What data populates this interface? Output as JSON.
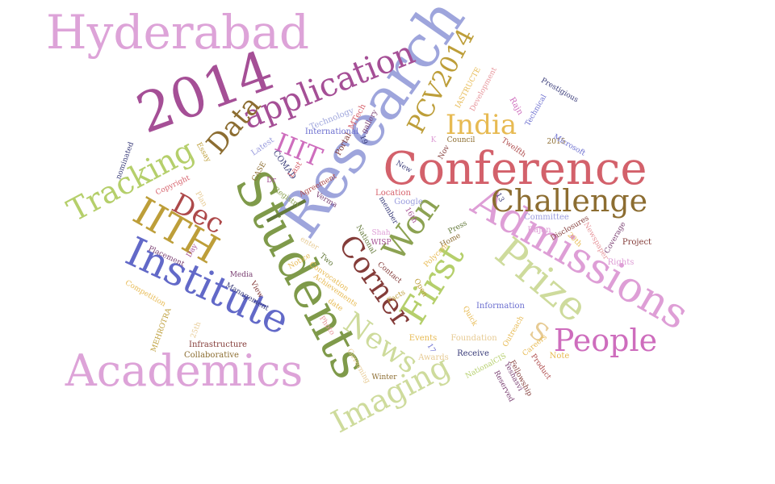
{
  "words": [
    {
      "text": "Hyderabad",
      "color": "#dda3d8"
    },
    {
      "text": "2014",
      "color": "#a54f96"
    },
    {
      "text": "Research",
      "color": "#9ea5dc"
    },
    {
      "text": "Conference",
      "color": "#d3616b"
    },
    {
      "text": "Students",
      "color": "#7f9a4a"
    },
    {
      "text": "Academics",
      "color": "#dda3d8"
    },
    {
      "text": "Institute",
      "color": "#6269c8"
    },
    {
      "text": "Admissions",
      "color": "#de9ed6"
    },
    {
      "text": "Prize",
      "color": "#cedb9c"
    },
    {
      "text": "Challenge",
      "color": "#8c6d31"
    },
    {
      "text": "IITH",
      "color": "#bd9e39"
    },
    {
      "text": "Tracking",
      "color": "#b5cf6b"
    },
    {
      "text": "application",
      "color": "#a54f96"
    },
    {
      "text": "India",
      "color": "#e7ba52"
    },
    {
      "text": "PCV2014",
      "color": "#bd9e39"
    },
    {
      "text": "Data",
      "color": "#8c6d31"
    },
    {
      "text": "IIIT",
      "color": "#ce6dbd"
    },
    {
      "text": "Dec",
      "color": "#ad494a"
    },
    {
      "text": "|",
      "color": "#637939"
    },
    {
      "text": "Won",
      "color": "#8ca252"
    },
    {
      "text": "First",
      "color": "#b5cf6b"
    },
    {
      "text": "Corner",
      "color": "#843c39"
    },
    {
      "text": "News",
      "color": "#cedb9c"
    },
    {
      "text": "Imaging",
      "color": "#cedb9c"
    },
    {
      "text": "People",
      "color": "#ce6dbd"
    },
    {
      "text": "S",
      "color": "#e7cb94"
    },
    {
      "text": "Technology",
      "color": "#9ea5dc"
    },
    {
      "text": "International",
      "color": "#6b6ecf"
    },
    {
      "text": "MTech",
      "color": "#d6616b"
    },
    {
      "text": "gallery",
      "color": "#7b4173"
    },
    {
      "text": "Portal",
      "color": "#843c39"
    },
    {
      "text": "19",
      "color": "#393b79"
    },
    {
      "text": "Latest",
      "color": "#9c9ede"
    },
    {
      "text": "COMAD",
      "color": "#393b79"
    },
    {
      "text": "Last",
      "color": "#d6616b"
    },
    {
      "text": "CASE",
      "color": "#8c6d31"
    },
    {
      "text": "Dr",
      "color": "#a55194"
    },
    {
      "text": "Agreement",
      "color": "#ad494a"
    },
    {
      "text": "Registry",
      "color": "#8ca252"
    },
    {
      "text": "Verma",
      "color": "#7b4173"
    },
    {
      "text": "member",
      "color": "#393b79"
    },
    {
      "text": "New",
      "color": "#393b79"
    },
    {
      "text": "Nov",
      "color": "#843c39"
    },
    {
      "text": "K",
      "color": "#de9ed6"
    },
    {
      "text": "Council",
      "color": "#8c6d31"
    },
    {
      "text": "IASTRUCTE",
      "color": "#e7ba52"
    },
    {
      "text": "Development",
      "color": "#e7969c"
    },
    {
      "text": "Rajn",
      "color": "#ce6dbd"
    },
    {
      "text": "Prestigious",
      "color": "#393b79"
    },
    {
      "text": "Technical",
      "color": "#6b6ecf"
    },
    {
      "text": "Twelfth",
      "color": "#ad494a"
    },
    {
      "text": "2015",
      "color": "#8c6d31"
    },
    {
      "text": "Microsoft",
      "color": "#6b6ecf"
    },
    {
      "text": "Location",
      "color": "#d6616b"
    },
    {
      "text": "Google",
      "color": "#9c9ede"
    },
    {
      "text": "16th",
      "color": "#a55194"
    },
    {
      "text": "13",
      "color": "#393b79"
    },
    {
      "text": "Committee",
      "color": "#9c9ede"
    },
    {
      "text": "Rajan",
      "color": "#de9ed6"
    },
    {
      "text": "Disclosures",
      "color": "#843c39"
    },
    {
      "text": "20th",
      "color": "#e7ba52"
    },
    {
      "text": "Newspaper",
      "color": "#e7969c"
    },
    {
      "text": "Coverage",
      "color": "#7b4173"
    },
    {
      "text": "Project",
      "color": "#843c39"
    },
    {
      "text": "Rights",
      "color": "#de9ed6"
    },
    {
      "text": "nominated",
      "color": "#393b79"
    },
    {
      "text": "Essay",
      "color": "#bd9e39"
    },
    {
      "text": "Copyright",
      "color": "#d6616b"
    },
    {
      "text": "Plan",
      "color": "#e7cb94"
    },
    {
      "text": "Day",
      "color": "#a55194"
    },
    {
      "text": "Placement",
      "color": "#7b4173"
    },
    {
      "text": "Media",
      "color": "#7b4173"
    },
    {
      "text": "Competition",
      "color": "#e7ba52"
    },
    {
      "text": "Management",
      "color": "#393b79"
    },
    {
      "text": "View",
      "color": "#843c39"
    },
    {
      "text": "MEHROTRA",
      "color": "#bd9e39"
    },
    {
      "text": "25th",
      "color": "#e7cb94"
    },
    {
      "text": "Infrastructure",
      "color": "#843c39"
    },
    {
      "text": "Collaborative",
      "color": "#8c6d31"
    },
    {
      "text": "enter",
      "color": "#e7cb94"
    },
    {
      "text": "Notice",
      "color": "#e7ba52"
    },
    {
      "text": "Two",
      "color": "#637939"
    },
    {
      "text": "Convocation",
      "color": "#e7ba52"
    },
    {
      "text": "Achievements",
      "color": "#e7ba52"
    },
    {
      "text": "date",
      "color": "#e7ba52"
    },
    {
      "text": "Photo",
      "color": "#e7969c"
    },
    {
      "text": "Governing",
      "color": "#e7cb94"
    },
    {
      "text": "Winter",
      "color": "#8c6d31"
    },
    {
      "text": "National",
      "color": "#637939"
    },
    {
      "text": "Shah",
      "color": "#de9ed6"
    },
    {
      "text": "WISP",
      "color": "#a55194"
    },
    {
      "text": "Contact",
      "color": "#843c39"
    },
    {
      "text": "Facts",
      "color": "#bd9e39"
    },
    {
      "text": "Open",
      "color": "#bd9e39"
    },
    {
      "text": "Press",
      "color": "#637939"
    },
    {
      "text": "Home",
      "color": "#8c6d31"
    },
    {
      "text": "Polycom",
      "color": "#e7ba52"
    },
    {
      "text": "Quick",
      "color": "#e7ba52"
    },
    {
      "text": "Information",
      "color": "#6b6ecf"
    },
    {
      "text": "Events",
      "color": "#e7ba52"
    },
    {
      "text": "Foundation",
      "color": "#e7cb94"
    },
    {
      "text": "Outreach",
      "color": "#e7ba52"
    },
    {
      "text": "17",
      "color": "#6b6ecf"
    },
    {
      "text": "Awards",
      "color": "#e7cb94"
    },
    {
      "text": "Receive",
      "color": "#393b79"
    },
    {
      "text": "Careers",
      "color": "#e7ba52"
    },
    {
      "text": "Note",
      "color": "#e7ba52"
    },
    {
      "text": "Product",
      "color": "#ad494a"
    },
    {
      "text": "NationalCIS",
      "color": "#b5cf6b"
    },
    {
      "text": "Yeshasvi",
      "color": "#7b4173"
    },
    {
      "text": "Fellowship",
      "color": "#843c39"
    },
    {
      "text": "Reserved",
      "color": "#7b4173"
    }
  ]
}
